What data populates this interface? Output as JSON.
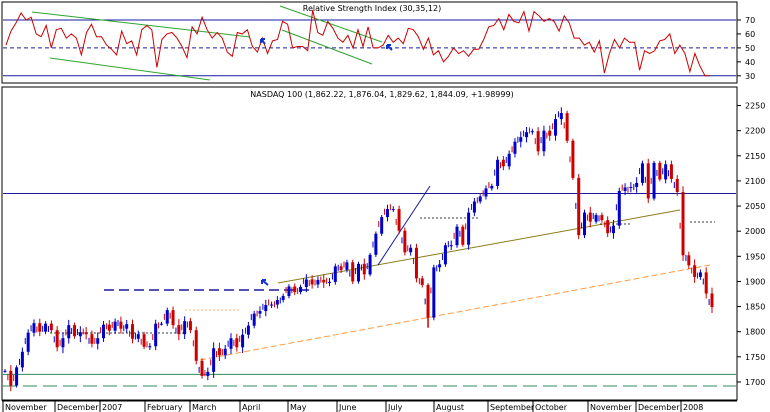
{
  "chart_data": [
    {
      "type": "line",
      "title": "Relative Strength Index (30,35,12)",
      "yticks": [
        30,
        40,
        50,
        60,
        70
      ],
      "ylim": [
        27,
        80
      ],
      "reference_lines": [
        {
          "value": 70,
          "style": "solid",
          "color": "#1a1aa0"
        },
        {
          "value": 50,
          "style": "dashed",
          "color": "#1a1aa0"
        },
        {
          "value": 30,
          "style": "solid",
          "color": "#1a1aa0"
        }
      ],
      "series": [
        {
          "color": "#cc0000",
          "values": [
            52,
            62,
            68,
            75,
            70,
            72,
            60,
            58,
            66,
            50,
            63,
            64,
            57,
            60,
            57,
            45,
            61,
            67,
            58,
            58,
            52,
            49,
            45,
            62,
            53,
            55,
            45,
            63,
            66,
            63,
            36,
            56,
            60,
            61,
            57,
            51,
            43,
            65,
            60,
            72,
            63,
            57,
            61,
            57,
            47,
            44,
            61,
            60,
            63,
            51,
            47,
            57,
            46,
            55,
            56,
            69,
            67,
            50,
            51,
            51,
            48,
            77,
            61,
            59,
            69,
            64,
            57,
            54,
            59,
            50,
            63,
            51,
            65,
            50,
            50,
            52,
            59,
            54,
            57,
            53,
            64,
            63,
            58,
            49,
            57,
            45,
            48,
            40,
            44,
            50,
            46,
            48,
            44,
            49,
            49,
            56,
            65,
            66,
            71,
            63,
            74,
            69,
            68,
            76,
            62,
            76,
            73,
            69,
            71,
            69,
            62,
            73,
            68,
            57,
            57,
            52,
            54,
            47,
            55,
            32,
            46,
            56,
            50,
            57,
            54,
            54,
            34,
            48,
            46,
            48,
            55,
            56,
            60,
            46,
            52,
            46,
            33,
            46,
            37,
            30,
            30
          ]
        }
      ],
      "trendlines": "green channel lines",
      "annotations": "blue arrows"
    },
    {
      "type": "candlestick",
      "title": "NASDAQ 100 (1,862.22, 1,876.04, 1,829.62, 1,844.09, +1.98999)",
      "xlabels": [
        "November",
        "December",
        "2007",
        "February",
        "March",
        "April",
        "May",
        "June",
        "July",
        "August",
        "September",
        "October",
        "November",
        "December",
        "2008"
      ],
      "yticks": [
        1700,
        1750,
        1800,
        1850,
        1900,
        1950,
        2000,
        2050,
        2100,
        2150,
        2200,
        2250
      ],
      "ylim": [
        1680,
        2265
      ],
      "reference_lines": [
        {
          "value": 2075,
          "style": "solid",
          "color": "#1a1aa0"
        },
        {
          "value": 1715,
          "style": "solid",
          "color": "#2e8b57"
        },
        {
          "value": 1692,
          "style": "dashed",
          "color": "#2e8b57"
        }
      ],
      "close_series": [
        1722,
        1693,
        1729,
        1760,
        1798,
        1817,
        1800,
        1816,
        1803,
        1769,
        1787,
        1813,
        1791,
        1799,
        1795,
        1776,
        1787,
        1814,
        1802,
        1820,
        1806,
        1815,
        1786,
        1795,
        1770,
        1771,
        1816,
        1816,
        1843,
        1813,
        1795,
        1821,
        1803,
        1742,
        1712,
        1720,
        1767,
        1753,
        1766,
        1787,
        1769,
        1794,
        1812,
        1836,
        1841,
        1853,
        1854,
        1863,
        1871,
        1890,
        1879,
        1889,
        1904,
        1894,
        1903,
        1898,
        1899,
        1930,
        1923,
        1938,
        1900,
        1935,
        1914,
        1953,
        1995,
        2028,
        2044,
        2044,
        2001,
        1958,
        1967,
        1906,
        1893,
        1828,
        1928,
        1934,
        1972,
        1972,
        2009,
        1973,
        2037,
        2059,
        2069,
        2085,
        2090,
        2142,
        2129,
        2154,
        2178,
        2187,
        2197,
        2199,
        2159,
        2200,
        2190,
        2223,
        2235,
        2180,
        2106,
        1992,
        2037,
        2019,
        2032,
        2022,
        1996,
        2011,
        2080,
        2087,
        2088,
        2096,
        2135,
        2065,
        2136,
        2103,
        2133,
        2104,
        2078,
        1952,
        1932,
        1909,
        1918,
        1876,
        1849
      ]
    }
  ]
}
